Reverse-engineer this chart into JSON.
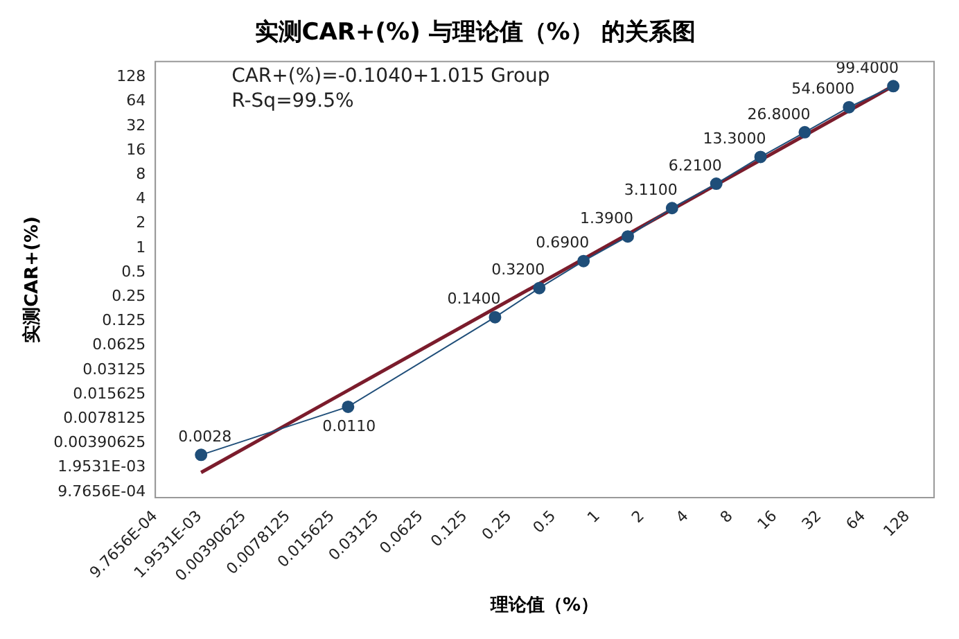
{
  "chart_data": {
    "type": "line",
    "title": "实测CAR+(%) 与理论值（%） 的关系图",
    "xlabel": "理论值（%）",
    "ylabel": "实测CAR+(%)",
    "annotations": [
      "CAR+(%)=-0.1040+1.015 Group",
      "R-Sq=99.5%"
    ],
    "log": "xy",
    "grid": false,
    "legend": false,
    "xlim": [
      0.0009765625,
      194
    ],
    "ylim": [
      0.00083,
      200
    ],
    "xticks": [
      {
        "value": 0.0009765625,
        "label": "9.7656E-04"
      },
      {
        "value": 0.001953125,
        "label": "1.9531E-03"
      },
      0.00390625,
      0.0078125,
      0.015625,
      0.03125,
      0.0625,
      0.125,
      0.25,
      0.5,
      1,
      2,
      4,
      8,
      16,
      32,
      64,
      128
    ],
    "yticks": [
      {
        "value": 0.0009765625,
        "label": "9.7656E-04"
      },
      {
        "value": 0.001953125,
        "label": "1.9531E-03"
      },
      0.00390625,
      0.0078125,
      0.015625,
      0.03125,
      0.0625,
      0.125,
      0.25,
      0.5,
      1,
      2,
      4,
      8,
      16,
      32,
      64,
      128
    ],
    "series": [
      {
        "color": "#1f4e79",
        "marker": "circle",
        "x": [
          0.002,
          0.02,
          0.2,
          0.4,
          0.8,
          1.6,
          3.2,
          6.4,
          12.8,
          25.6,
          51.2,
          102.4
        ],
        "values": [
          0.0028,
          0.011,
          0.14,
          0.32,
          0.69,
          1.39,
          3.11,
          6.21,
          13.3,
          26.8,
          54.6,
          99.4
        ],
        "value_labels": [
          "0.0028",
          "0.0110",
          "0.1400",
          "0.3200",
          "0.6900",
          "1.3900",
          "3.1100",
          "6.2100",
          "13.3000",
          "26.8000",
          "54.6000",
          "99.4000"
        ]
      },
      {
        "color": "#7b1c2c",
        "marker": "none",
        "x": [
          0.002,
          102.4
        ],
        "values": [
          0.0017,
          100
        ]
      }
    ]
  }
}
